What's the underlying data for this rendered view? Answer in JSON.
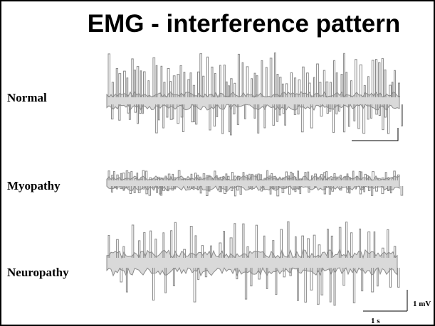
{
  "title": "EMG - interference pattern",
  "rows": [
    {
      "label": "Normal"
    },
    {
      "label": "Myopathy"
    },
    {
      "label": "Neuropathy"
    }
  ],
  "scale_bar": {
    "amplitude_label": "1 mV",
    "time_label": "1 s"
  },
  "colors": {
    "trace": "#8a8a8a",
    "fill": "#d9d9d9",
    "text": "#000000"
  }
}
